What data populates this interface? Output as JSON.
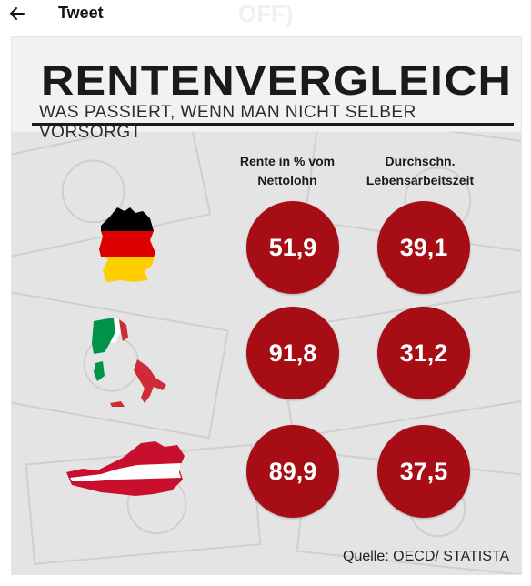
{
  "header": {
    "title": "Tweet",
    "background_watermark_text": "OFF)"
  },
  "infographic": {
    "title": "RENTENVERGLEICH",
    "subtitle": "WAS PASSIERT, WENN MAN NICHT SELBER VORSORGT",
    "column_headers": [
      "Rente in % vom Nettolohn",
      "Durchschn. Lebensarbeitszeit"
    ],
    "rows": [
      {
        "flag": "germany-flag-map",
        "rente": "51,9",
        "lebensarbeitszeit": "39,1"
      },
      {
        "flag": "italy-flag-map",
        "rente": "91,8",
        "lebensarbeitszeit": "31,2"
      },
      {
        "flag": "austria-flag-map",
        "rente": "89,9",
        "lebensarbeitszeit": "37,5"
      }
    ],
    "source": "Quelle: OECD/ STATISTA",
    "colors": {
      "circle": "#a70d15",
      "title": "#1a1a1a",
      "de_black": "#000000",
      "de_red": "#dd0000",
      "de_gold": "#ffce00",
      "it_green": "#009246",
      "it_red": "#ce2b37",
      "at_red": "#c8102e"
    }
  }
}
